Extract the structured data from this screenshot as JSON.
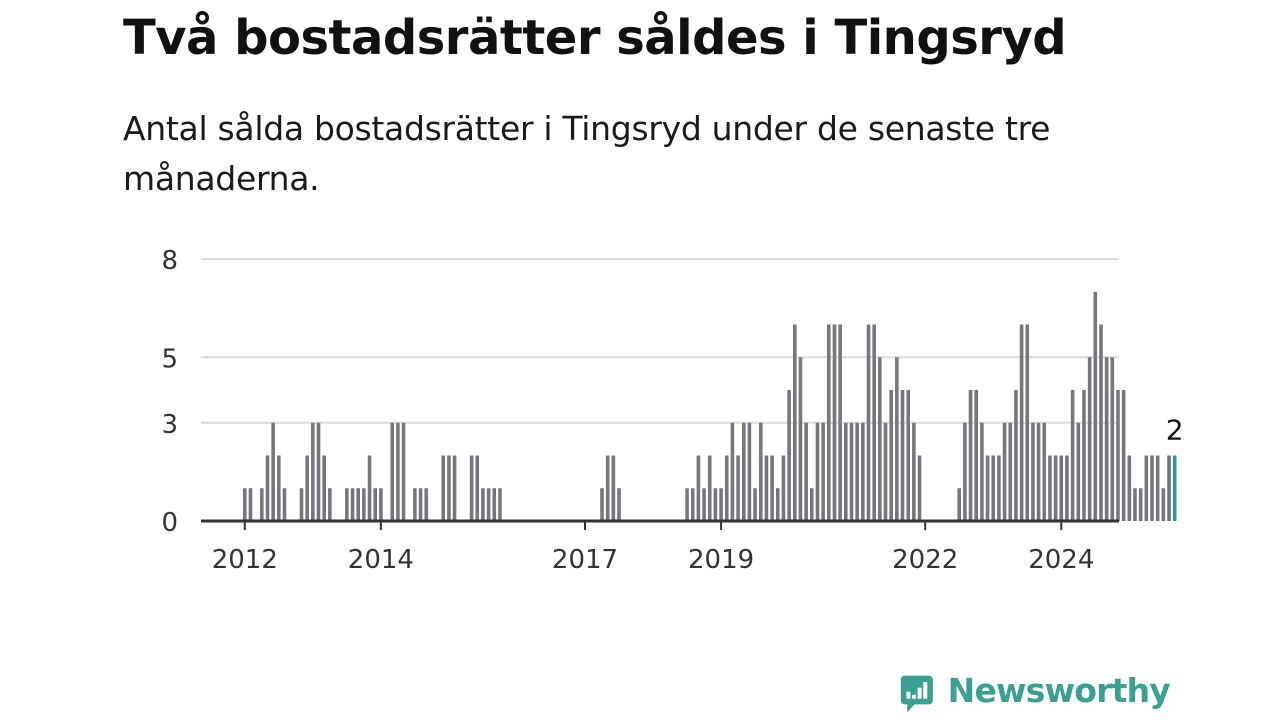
{
  "title": "Två bostadsrätter såldes i Tingsryd",
  "subtitle": "Antal sålda bostadsrätter i Tingsryd under de senaste tre månaderna.",
  "brand": {
    "name": "Newsworthy"
  },
  "colors": {
    "bar": "#76767c",
    "highlight": "#2a9d91",
    "grid": "#dcdcdc",
    "axis": "#333333",
    "brand": "#3b9f92"
  },
  "chart_data": {
    "type": "bar",
    "title": "",
    "xlabel": "",
    "ylabel": "",
    "ylim": [
      0,
      8
    ],
    "y_ticks": [
      "0",
      "3",
      "5",
      "8"
    ],
    "x_ticks": [
      "2012",
      "2014",
      "2017",
      "2019",
      "2022",
      "2024"
    ],
    "grid": true,
    "highlight_label": "2",
    "series": [
      {
        "values": [
          1,
          1,
          0,
          1,
          2,
          3,
          2,
          1,
          0,
          0,
          1,
          2,
          3,
          3,
          2,
          1,
          0,
          0,
          1,
          1,
          1,
          1,
          2,
          1,
          1,
          0,
          3,
          3,
          3,
          0,
          1,
          1,
          1,
          0,
          0,
          2,
          2,
          2,
          0,
          0,
          2,
          2,
          1,
          1,
          1,
          1,
          0,
          0,
          0,
          0,
          0,
          0,
          0,
          0,
          0,
          0,
          0,
          0,
          0,
          0,
          0,
          0,
          0,
          1,
          2,
          2,
          1,
          0,
          0,
          0,
          0,
          0,
          0,
          0,
          0,
          0,
          0,
          0,
          1,
          1,
          2,
          1,
          2,
          1,
          1,
          2,
          3,
          2,
          3,
          3,
          1,
          3,
          2,
          2,
          1,
          2,
          4,
          6,
          5,
          3,
          1,
          3,
          3,
          6,
          6,
          6,
          3,
          3,
          3,
          3,
          6,
          6,
          5,
          3,
          4,
          5,
          4,
          4,
          3,
          2,
          0,
          0,
          0,
          0,
          0,
          0,
          1,
          3,
          4,
          4,
          3,
          2,
          2,
          2,
          3,
          3,
          4,
          6,
          6,
          3,
          3,
          3,
          2,
          2,
          2,
          2,
          4,
          3,
          4,
          5,
          7,
          6,
          5,
          5,
          4,
          4,
          2,
          1,
          1,
          2,
          2,
          2,
          1,
          2,
          2
        ]
      }
    ]
  }
}
